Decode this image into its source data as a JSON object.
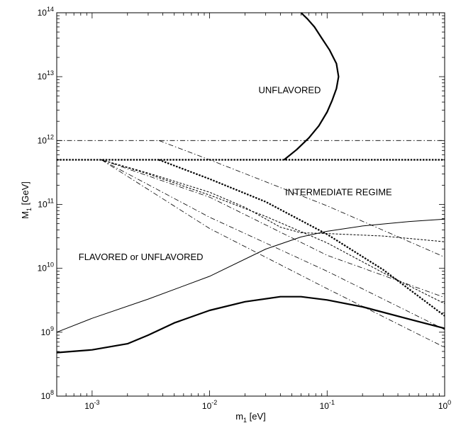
{
  "chart_data": {
    "type": "line",
    "title": "",
    "xlabel": {
      "base": "m",
      "sub": "1",
      "rest": " [eV]"
    },
    "ylabel": {
      "base": "M",
      "sub": "1",
      "rest": " [GeV]"
    },
    "xscale": "log",
    "yscale": "log",
    "xlim": [
      0.0005,
      1
    ],
    "ylim": [
      100000000.0,
      100000000000000.0
    ],
    "grid": false,
    "legend": "none",
    "xticks": [
      {
        "value": 0.001,
        "base": "10",
        "exp": "-3"
      },
      {
        "value": 0.01,
        "base": "10",
        "exp": "-2"
      },
      {
        "value": 0.1,
        "base": "10",
        "exp": "-1"
      },
      {
        "value": 1,
        "base": "10",
        "exp": "0"
      }
    ],
    "yticks": [
      {
        "value": 100000000.0,
        "base": "10",
        "exp": "8"
      },
      {
        "value": 1000000000.0,
        "base": "10",
        "exp": "9"
      },
      {
        "value": 10000000000.0,
        "base": "10",
        "exp": "10"
      },
      {
        "value": 100000000000.0,
        "base": "10",
        "exp": "11"
      },
      {
        "value": 1000000000000.0,
        "base": "10",
        "exp": "12"
      },
      {
        "value": 10000000000000.0,
        "base": "10",
        "exp": "13"
      },
      {
        "value": 100000000000000.0,
        "base": "10",
        "exp": "14"
      }
    ],
    "annotations": [
      {
        "text": "UNFLAVORED",
        "x": 0.048,
        "y": 5500000000000.0
      },
      {
        "text": "INTERMEDIATE REGIME",
        "x": 0.125,
        "y": 140000000000.0
      },
      {
        "text": "FLAVORED or UNFLAVORED",
        "x": 0.0026,
        "y": 13500000000.0
      }
    ],
    "series": [
      {
        "style": "thick-solid",
        "x": [
          0.043,
          0.055,
          0.07,
          0.085,
          0.1,
          0.11,
          0.12,
          0.125,
          0.12,
          0.105,
          0.09,
          0.078,
          0.068,
          0.06
        ],
        "y": [
          500000000000.0,
          720000000000.0,
          1100000000000.0,
          1700000000000.0,
          2800000000000.0,
          4200000000000.0,
          6500000000000.0,
          10000000000000.0,
          16000000000000.0,
          26000000000000.0,
          40000000000000.0,
          60000000000000.0,
          80000000000000.0,
          100000000000000.0
        ]
      },
      {
        "style": "thick-solid",
        "x": [
          0.0005,
          0.001,
          0.002,
          0.003,
          0.005,
          0.01,
          0.02,
          0.04,
          0.06,
          0.1,
          0.2,
          0.5,
          1
        ],
        "y": [
          480000000.0,
          530000000.0,
          660000000.0,
          900000000.0,
          1400000000.0,
          2200000000.0,
          3000000000.0,
          3600000000.0,
          3600000000.0,
          3200000000.0,
          2500000000.0,
          1600000000.0,
          1150000000.0
        ]
      },
      {
        "style": "thin-solid",
        "x": [
          0.0005,
          0.001,
          0.003,
          0.01,
          0.03,
          0.06,
          0.1,
          0.2,
          0.5,
          1
        ],
        "y": [
          1000000000.0,
          1650000000.0,
          3300000000.0,
          7500000000.0,
          20000000000.0,
          31000000000.0,
          38000000000.0,
          46000000000.0,
          54000000000.0,
          59000000000.0
        ]
      },
      {
        "style": "thick-dotted",
        "x": [
          0.0005,
          1
        ],
        "y": [
          500000000000.0,
          500000000000.0
        ]
      },
      {
        "style": "thick-dotted",
        "x": [
          0.0037,
          0.01,
          0.03,
          0.1,
          0.3,
          1
        ],
        "y": [
          500000000000.0,
          250000000000.0,
          110000000000.0,
          34000000000.0,
          9500000000.0,
          1800000000.0
        ]
      },
      {
        "style": "thin-dash",
        "x": [
          0.0012,
          0.003,
          0.01,
          0.02,
          0.04,
          0.06,
          0.1,
          0.3,
          1
        ],
        "y": [
          500000000000.0,
          310000000000.0,
          155000000000.0,
          90000000000.0,
          44000000000.0,
          36000000000.0,
          35000000000.0,
          32000000000.0,
          26000000000.0
        ]
      },
      {
        "style": "thin-dash",
        "x": [
          0.0012,
          0.003,
          0.01,
          0.03,
          0.1,
          0.3,
          1
        ],
        "y": [
          500000000000.0,
          300000000000.0,
          140000000000.0,
          65000000000.0,
          25000000000.0,
          8500000000.0,
          2800000000.0
        ]
      },
      {
        "style": "dash-dot",
        "x": [
          0.0005,
          1
        ],
        "y": [
          1000000000000.0,
          1000000000000.0
        ]
      },
      {
        "style": "dash-dot",
        "x": [
          0.0037,
          0.01,
          0.1,
          1
        ],
        "y": [
          1000000000000.0,
          500000000000.0,
          95000000000.0,
          15000000000.0
        ]
      },
      {
        "style": "dash-dot",
        "x": [
          0.0012,
          0.01,
          0.1,
          1
        ],
        "y": [
          500000000000.0,
          63000000000.0,
          9000000000.0,
          1100000000.0
        ]
      },
      {
        "style": "dash-dot",
        "x": [
          0.0012,
          0.01,
          0.1,
          1
        ],
        "y": [
          500000000000.0,
          130000000000.0,
          16000000000.0,
          3500000000.0
        ]
      },
      {
        "style": "dash-dot",
        "x": [
          0.0012,
          0.01,
          0.1,
          1
        ],
        "y": [
          500000000000.0,
          42000000000.0,
          4800000000.0,
          580000000.0
        ]
      }
    ]
  }
}
